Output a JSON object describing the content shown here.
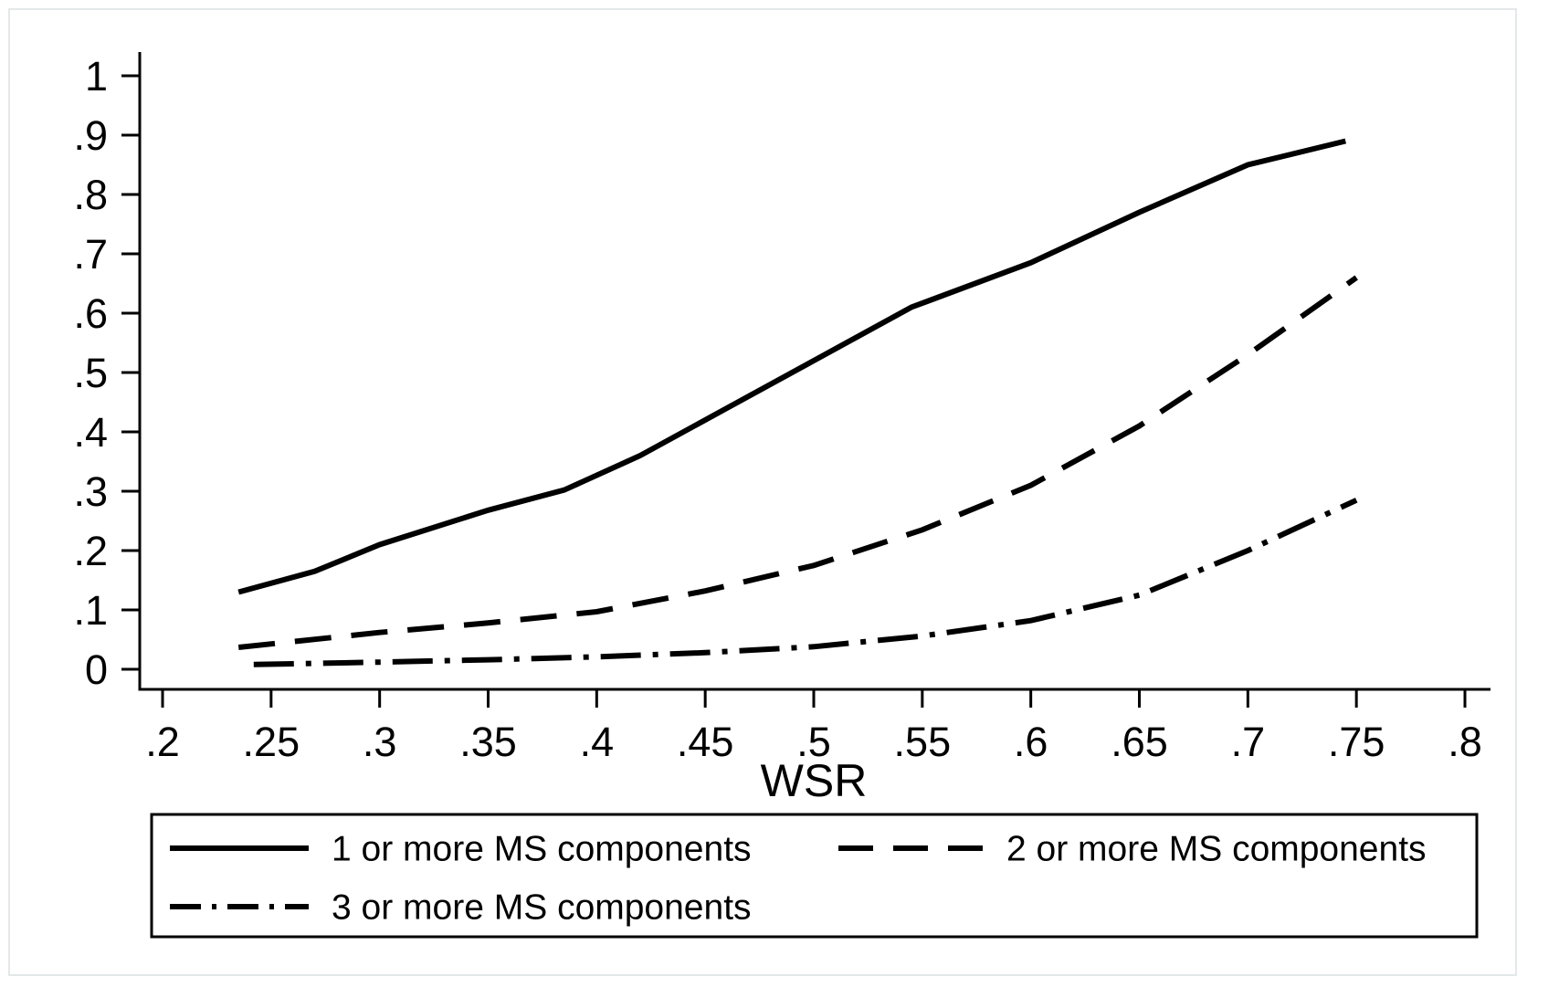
{
  "figure": {
    "background": "#ffffff",
    "frame_color": "#e3e8e8",
    "ink_color": "#000000"
  },
  "chart_data": {
    "type": "line",
    "title": "",
    "xlabel": "WSR",
    "ylabel": "",
    "xlim": [
      0.2,
      0.8
    ],
    "ylim": [
      0,
      1
    ],
    "grid": false,
    "x_ticks": [
      {
        "value": 0.2,
        "label": ".2"
      },
      {
        "value": 0.25,
        "label": ".25"
      },
      {
        "value": 0.3,
        "label": ".3"
      },
      {
        "value": 0.35,
        "label": ".35"
      },
      {
        "value": 0.4,
        "label": ".4"
      },
      {
        "value": 0.45,
        "label": ".45"
      },
      {
        "value": 0.5,
        "label": ".5"
      },
      {
        "value": 0.55,
        "label": ".55"
      },
      {
        "value": 0.6,
        "label": ".6"
      },
      {
        "value": 0.65,
        "label": ".65"
      },
      {
        "value": 0.7,
        "label": ".7"
      },
      {
        "value": 0.75,
        "label": ".75"
      },
      {
        "value": 0.8,
        "label": ".8"
      }
    ],
    "y_ticks": [
      {
        "value": 0.0,
        "label": "0"
      },
      {
        "value": 0.1,
        "label": ".1"
      },
      {
        "value": 0.2,
        "label": ".2"
      },
      {
        "value": 0.3,
        "label": ".3"
      },
      {
        "value": 0.4,
        "label": ".4"
      },
      {
        "value": 0.5,
        "label": ".5"
      },
      {
        "value": 0.6,
        "label": ".6"
      },
      {
        "value": 0.7,
        "label": ".7"
      },
      {
        "value": 0.8,
        "label": ".8"
      },
      {
        "value": 0.9,
        "label": ".9"
      },
      {
        "value": 1.0,
        "label": "1"
      }
    ],
    "legend": {
      "position": "below",
      "border": true,
      "entries": [
        "1 or more MS components",
        "2 or more MS components",
        "3 or more MS components"
      ]
    },
    "series": [
      {
        "name": "1 or more MS components",
        "line_style": "solid",
        "color": "#000000",
        "points": [
          [
            0.235,
            0.13
          ],
          [
            0.27,
            0.165
          ],
          [
            0.3,
            0.21
          ],
          [
            0.35,
            0.268
          ],
          [
            0.385,
            0.302
          ],
          [
            0.42,
            0.36
          ],
          [
            0.46,
            0.44
          ],
          [
            0.5,
            0.52
          ],
          [
            0.545,
            0.61
          ],
          [
            0.6,
            0.685
          ],
          [
            0.65,
            0.77
          ],
          [
            0.7,
            0.85
          ],
          [
            0.745,
            0.89
          ]
        ]
      },
      {
        "name": "2 or more MS components",
        "line_style": "dashed",
        "color": "#000000",
        "points": [
          [
            0.235,
            0.037
          ],
          [
            0.3,
            0.062
          ],
          [
            0.35,
            0.078
          ],
          [
            0.4,
            0.097
          ],
          [
            0.45,
            0.132
          ],
          [
            0.5,
            0.175
          ],
          [
            0.55,
            0.235
          ],
          [
            0.6,
            0.31
          ],
          [
            0.65,
            0.41
          ],
          [
            0.7,
            0.53
          ],
          [
            0.75,
            0.66
          ]
        ]
      },
      {
        "name": "3 or more MS components",
        "line_style": "dash-dot",
        "color": "#000000",
        "points": [
          [
            0.242,
            0.008
          ],
          [
            0.3,
            0.012
          ],
          [
            0.35,
            0.016
          ],
          [
            0.4,
            0.021
          ],
          [
            0.45,
            0.028
          ],
          [
            0.5,
            0.038
          ],
          [
            0.55,
            0.056
          ],
          [
            0.6,
            0.082
          ],
          [
            0.65,
            0.125
          ],
          [
            0.7,
            0.2
          ],
          [
            0.75,
            0.285
          ]
        ]
      }
    ]
  }
}
